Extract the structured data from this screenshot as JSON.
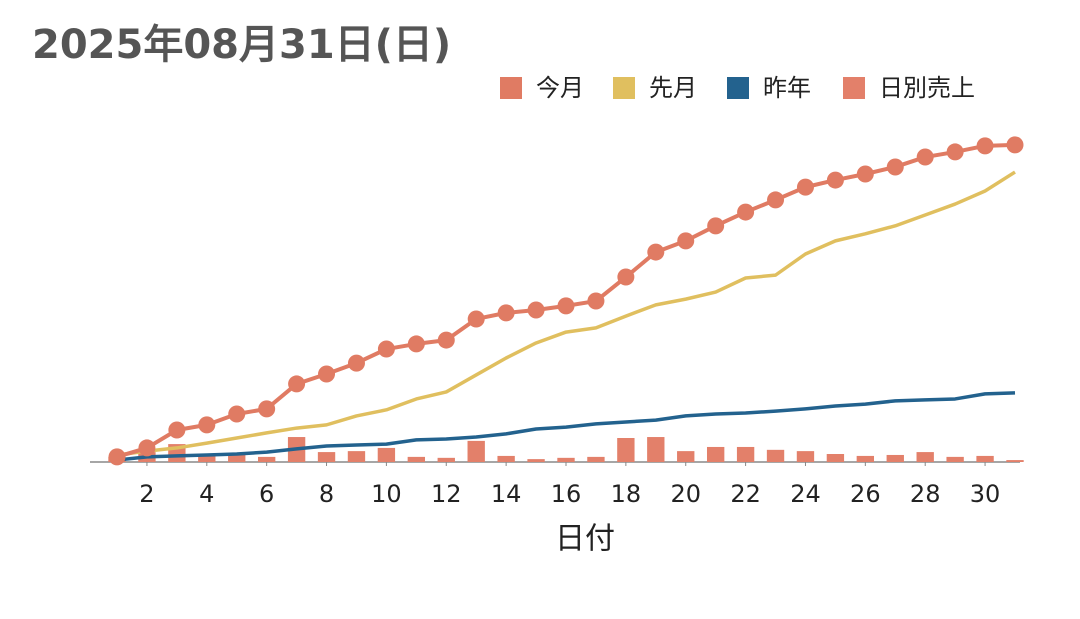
{
  "chart_data": {
    "type": "line",
    "title": "2025年08月31日(日)",
    "x_label": "日付",
    "x": [
      1,
      2,
      3,
      4,
      5,
      6,
      7,
      8,
      9,
      10,
      11,
      12,
      13,
      14,
      15,
      16,
      17,
      18,
      19,
      20,
      21,
      22,
      23,
      24,
      25,
      26,
      27,
      28,
      29,
      30,
      31
    ],
    "xlim": [
      1,
      31
    ],
    "xticks": [
      2,
      4,
      6,
      8,
      10,
      12,
      14,
      16,
      18,
      20,
      22,
      24,
      26,
      28,
      30
    ],
    "ylim": [
      0,
      100
    ],
    "legend": "top-right",
    "series": [
      {
        "name": "今月",
        "type": "line",
        "markers": true,
        "color": "#e07b63",
        "values": [
          1.6,
          4.4,
          10,
          11.6,
          15,
          16.6,
          24.4,
          27.5,
          30.9,
          35.3,
          36.9,
          38.1,
          44.7,
          46.6,
          47.5,
          48.8,
          50.3,
          57.8,
          65.6,
          69.1,
          73.8,
          78.1,
          81.9,
          85.9,
          88.1,
          90,
          92.2,
          95.3,
          96.9,
          98.8,
          99.1
        ]
      },
      {
        "name": "先月",
        "type": "line",
        "color": "#e0bf5f",
        "values": [
          2.2,
          3.4,
          4.4,
          5.9,
          7.5,
          9.1,
          10.6,
          11.6,
          14.4,
          16.3,
          19.7,
          21.9,
          27.2,
          32.5,
          37.2,
          40.6,
          41.9,
          45.6,
          49.1,
          50.9,
          53.1,
          57.5,
          58.4,
          65,
          69.1,
          71.3,
          73.8,
          77.2,
          80.6,
          84.7,
          90.6
        ]
      },
      {
        "name": "昨年",
        "type": "line",
        "color": "#23628e",
        "values": [
          0.6,
          1.6,
          1.9,
          2.2,
          2.5,
          3.1,
          4.1,
          5,
          5.3,
          5.6,
          6.9,
          7.2,
          7.8,
          8.8,
          10.3,
          10.9,
          11.9,
          12.5,
          13.1,
          14.4,
          15,
          15.3,
          15.9,
          16.6,
          17.5,
          18.1,
          19.1,
          19.4,
          19.7,
          21.3,
          21.6
        ]
      },
      {
        "name": "日別売上",
        "type": "bar",
        "color": "#e3806a",
        "values": [
          1.6,
          3.1,
          5.6,
          2.2,
          2.5,
          1.6,
          7.8,
          3.1,
          3.4,
          4.4,
          1.6,
          1.3,
          6.6,
          1.9,
          0.9,
          1.3,
          1.6,
          7.5,
          7.8,
          3.4,
          4.7,
          4.7,
          3.8,
          3.4,
          2.5,
          1.9,
          2.2,
          3.1,
          1.6,
          1.9,
          0.6
        ]
      }
    ]
  }
}
